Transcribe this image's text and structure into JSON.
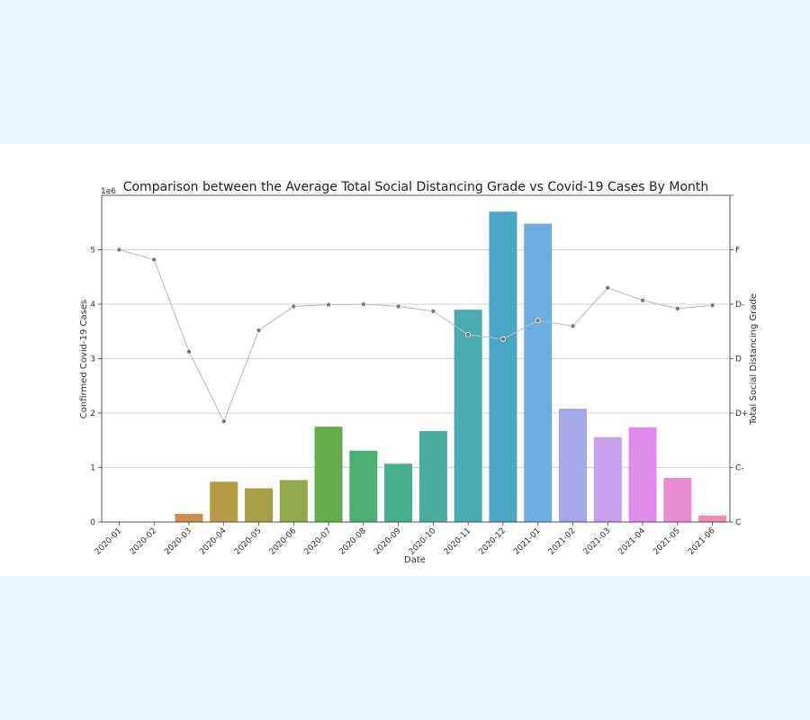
{
  "chart_data": {
    "type": "bar",
    "title": "Comparison between the Average Total Social Distancing Grade vs Covid-19 Cases By Month",
    "xlabel": "Date",
    "ylabel": "Confirmed Covid-19 Cases",
    "y2label": "Total Social Distancing Grade",
    "y_offset_label": "1e6",
    "ylim": [
      0,
      6
    ],
    "yticks": [
      0,
      1,
      2,
      3,
      4,
      5
    ],
    "y2_ticks": [
      "C",
      "C-",
      "D+",
      "D",
      "D-",
      "F"
    ],
    "grid": "horizontal",
    "categories": [
      "2020-01",
      "2020-02",
      "2020-03",
      "2020-04",
      "2020-05",
      "2020-06",
      "2020-07",
      "2020-08",
      "2020-09",
      "2020-10",
      "2020-11",
      "2020-12",
      "2021-01",
      "2021-02",
      "2021-03",
      "2021-04",
      "2021-05",
      "2021-06"
    ],
    "series": [
      {
        "type": "bar",
        "values": [
          0.0,
          0.0,
          0.15,
          0.74,
          0.62,
          0.77,
          1.75,
          1.31,
          1.07,
          1.67,
          3.9,
          5.7,
          5.48,
          2.08,
          1.56,
          1.74,
          0.81,
          0.12
        ],
        "colors": [
          "#e58c8a",
          "#d9905f",
          "#cc8e44",
          "#b79c48",
          "#a6a048",
          "#92a64a",
          "#62ae4a",
          "#4caf74",
          "#45ae8e",
          "#48ad9c",
          "#49adb0",
          "#4aa8c6",
          "#6aaee2",
          "#a7a8e9",
          "#c7a0eb",
          "#dc8ee8",
          "#e98ccf",
          "#ec8cb3"
        ]
      },
      {
        "type": "line",
        "axis": "y2",
        "color": "#7a7a7a",
        "values": [
          5.0,
          4.82,
          3.13,
          1.85,
          3.52,
          3.96,
          3.99,
          4.0,
          3.96,
          3.87,
          3.44,
          3.36,
          3.7,
          3.6,
          4.3,
          4.07,
          3.92,
          3.98
        ]
      }
    ]
  }
}
